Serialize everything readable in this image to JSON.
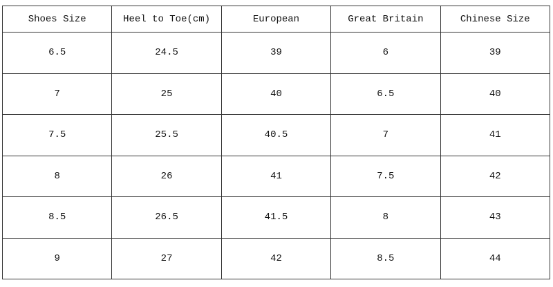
{
  "table": {
    "header": [
      "Shoes Size",
      "Heel to Toe(cm)",
      "European",
      "Great Britain",
      "Chinese Size"
    ],
    "rows": [
      [
        "6.5",
        "24.5",
        "39",
        "6",
        "39"
      ],
      [
        "7",
        "25",
        "40",
        "6.5",
        "40"
      ],
      [
        "7.5",
        "25.5",
        "40.5",
        "7",
        "41"
      ],
      [
        "8",
        "26",
        "41",
        "7.5",
        "42"
      ],
      [
        "8.5",
        "26.5",
        "41.5",
        "8",
        "43"
      ],
      [
        "9",
        "27",
        "42",
        "8.5",
        "44"
      ]
    ]
  }
}
